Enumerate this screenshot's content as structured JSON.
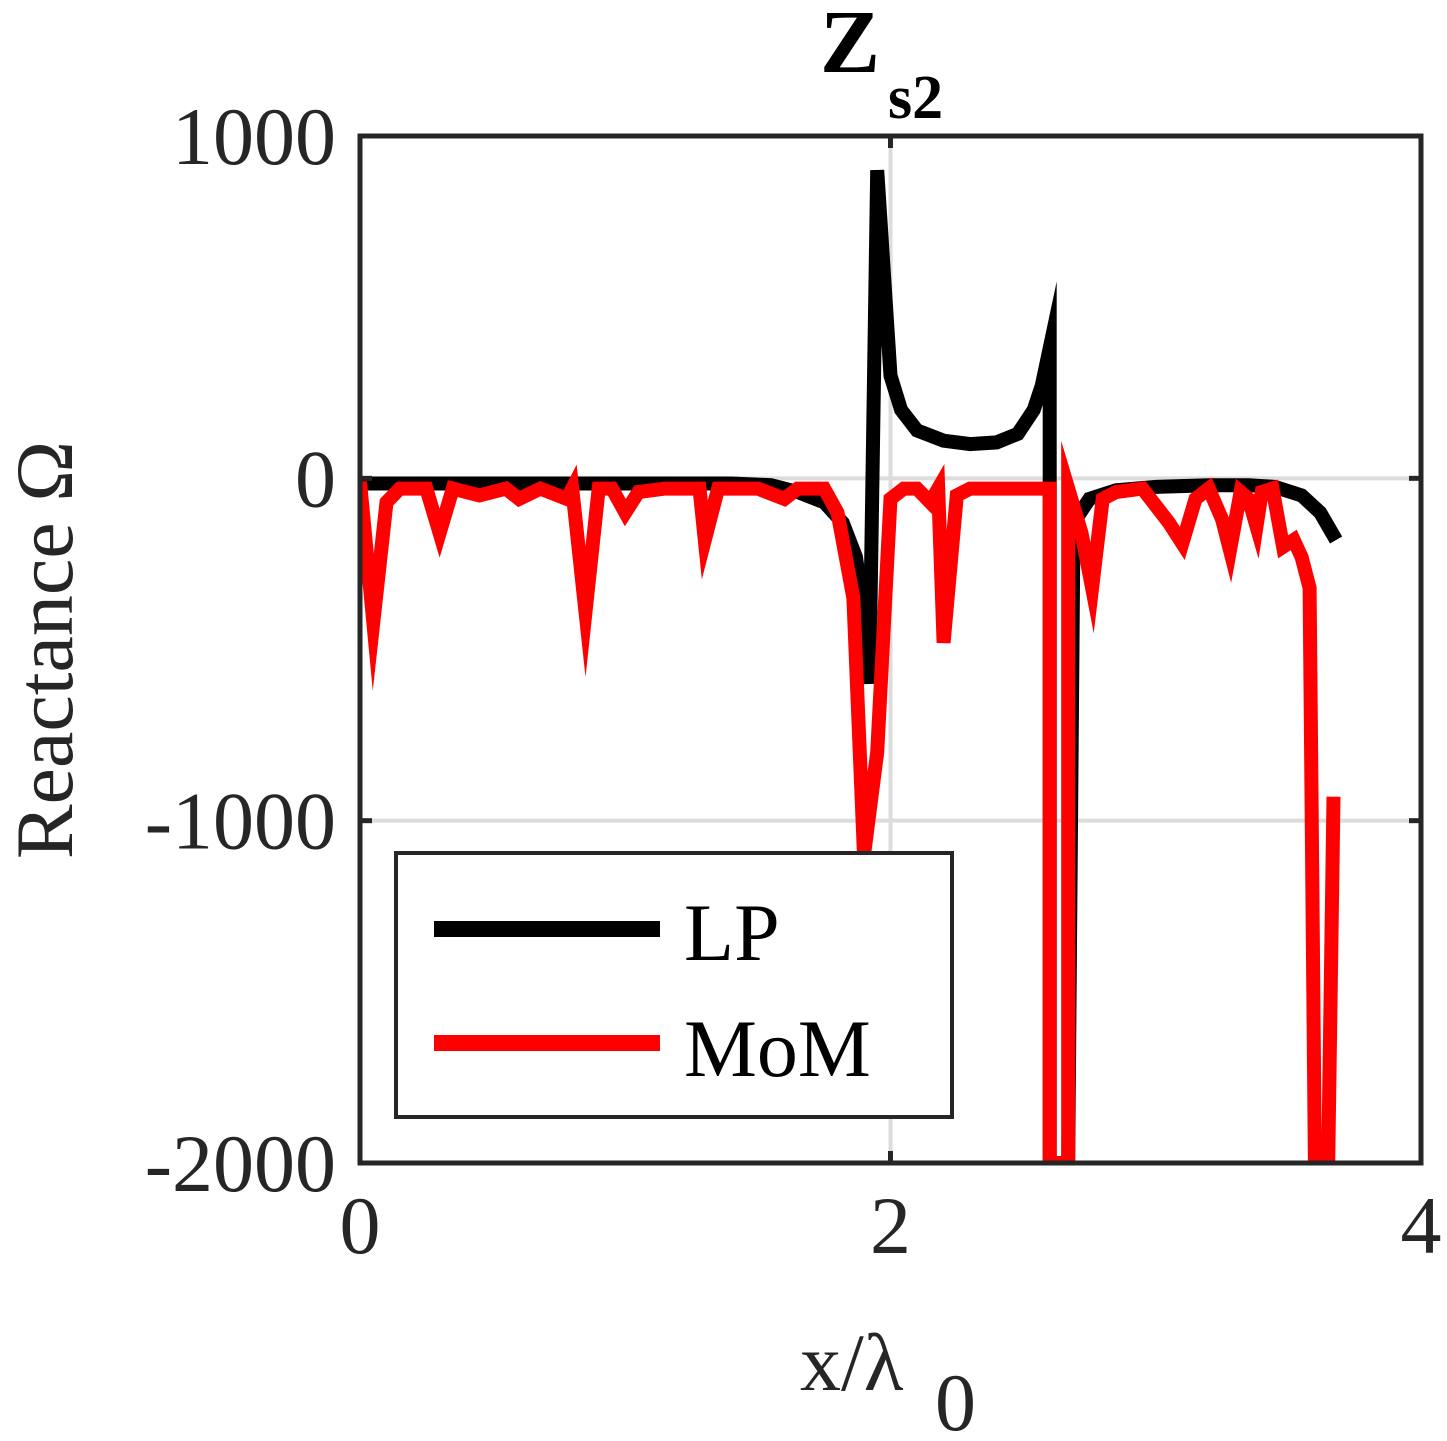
{
  "chart_data": {
    "type": "line",
    "title": "Z",
    "title_subscript": "s2",
    "xlabel": "x/λ",
    "xlabel_subscript": "0",
    "ylabel": "Reactance Ω",
    "xlim": [
      0,
      4
    ],
    "ylim": [
      -2000,
      1000
    ],
    "xticks": [
      0,
      2,
      4
    ],
    "xtick_labels": [
      "0",
      "2",
      "4"
    ],
    "yticks": [
      1000,
      0,
      -1000,
      -2000
    ],
    "ytick_labels": [
      "1000",
      "0",
      "-1000",
      "-2000"
    ],
    "grid": true,
    "legend_position": "bottom-left",
    "series": [
      {
        "name": "LP",
        "color": "#000000",
        "points": [
          [
            0.0,
            -15
          ],
          [
            0.2,
            -15
          ],
          [
            0.4,
            -15
          ],
          [
            0.6,
            -15
          ],
          [
            0.8,
            -15
          ],
          [
            1.0,
            -15
          ],
          [
            1.2,
            -15
          ],
          [
            1.4,
            -15
          ],
          [
            1.55,
            -20
          ],
          [
            1.65,
            -40
          ],
          [
            1.75,
            -70
          ],
          [
            1.82,
            -130
          ],
          [
            1.87,
            -230
          ],
          [
            1.9,
            -400
          ],
          [
            1.92,
            -600
          ],
          [
            1.95,
            900
          ],
          [
            2.0,
            300
          ],
          [
            2.04,
            200
          ],
          [
            2.1,
            140
          ],
          [
            2.2,
            110
          ],
          [
            2.3,
            100
          ],
          [
            2.4,
            105
          ],
          [
            2.48,
            130
          ],
          [
            2.54,
            200
          ],
          [
            2.57,
            270
          ],
          [
            2.6,
            380
          ],
          [
            2.6,
            -2000
          ],
          [
            2.67,
            -2000
          ],
          [
            2.69,
            -130
          ],
          [
            2.75,
            -60
          ],
          [
            2.85,
            -35
          ],
          [
            3.0,
            -25
          ],
          [
            3.2,
            -20
          ],
          [
            3.35,
            -20
          ],
          [
            3.45,
            -25
          ],
          [
            3.55,
            -50
          ],
          [
            3.62,
            -100
          ],
          [
            3.68,
            -180
          ]
        ]
      },
      {
        "name": "MoM",
        "color": "#ff0000",
        "points": [
          [
            0.0,
            -10
          ],
          [
            0.05,
            -420
          ],
          [
            0.1,
            -70
          ],
          [
            0.15,
            -30
          ],
          [
            0.25,
            -30
          ],
          [
            0.3,
            -160
          ],
          [
            0.35,
            -30
          ],
          [
            0.45,
            -50
          ],
          [
            0.55,
            -30
          ],
          [
            0.6,
            -60
          ],
          [
            0.68,
            -30
          ],
          [
            0.78,
            -60
          ],
          [
            0.8,
            -30
          ],
          [
            0.85,
            -390
          ],
          [
            0.9,
            -30
          ],
          [
            0.95,
            -30
          ],
          [
            1.0,
            -100
          ],
          [
            1.05,
            -40
          ],
          [
            1.15,
            -30
          ],
          [
            1.28,
            -30
          ],
          [
            1.3,
            -180
          ],
          [
            1.35,
            -30
          ],
          [
            1.4,
            -30
          ],
          [
            1.5,
            -30
          ],
          [
            1.6,
            -60
          ],
          [
            1.65,
            -30
          ],
          [
            1.75,
            -30
          ],
          [
            1.8,
            -100
          ],
          [
            1.86,
            -350
          ],
          [
            1.9,
            -1100
          ],
          [
            1.95,
            -800
          ],
          [
            2.0,
            -60
          ],
          [
            2.05,
            -30
          ],
          [
            2.1,
            -30
          ],
          [
            2.15,
            -70
          ],
          [
            2.18,
            -30
          ],
          [
            2.2,
            -480
          ],
          [
            2.25,
            -50
          ],
          [
            2.3,
            -30
          ],
          [
            2.4,
            -30
          ],
          [
            2.6,
            -30
          ],
          [
            2.6,
            -2000
          ],
          [
            2.67,
            -2000
          ],
          [
            2.67,
            -30
          ],
          [
            2.72,
            -160
          ],
          [
            2.76,
            -320
          ],
          [
            2.8,
            -60
          ],
          [
            2.85,
            -40
          ],
          [
            2.95,
            -30
          ],
          [
            3.05,
            -130
          ],
          [
            3.1,
            -190
          ],
          [
            3.15,
            -60
          ],
          [
            3.2,
            -30
          ],
          [
            3.25,
            -120
          ],
          [
            3.28,
            -210
          ],
          [
            3.32,
            -40
          ],
          [
            3.35,
            -60
          ],
          [
            3.38,
            -140
          ],
          [
            3.4,
            -40
          ],
          [
            3.44,
            -30
          ],
          [
            3.48,
            -200
          ],
          [
            3.52,
            -180
          ],
          [
            3.55,
            -230
          ],
          [
            3.58,
            -320
          ],
          [
            3.6,
            -2000
          ],
          [
            3.65,
            -2000
          ],
          [
            3.67,
            -930
          ]
        ]
      }
    ]
  }
}
